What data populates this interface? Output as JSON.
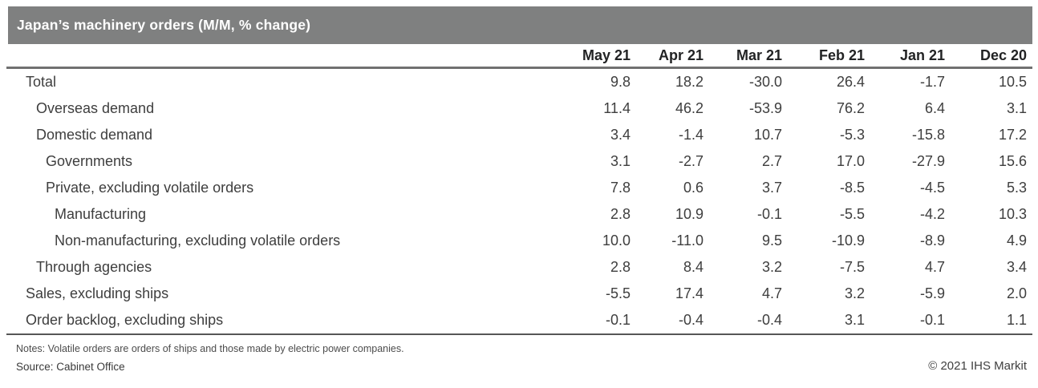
{
  "title_bar": {
    "title": "Japan’s machinery orders (M/M, % change)"
  },
  "chart_data": {
    "type": "table",
    "title": "Japan’s machinery orders (M/M, % change)",
    "unit": "M/M, % change",
    "columns": [
      "May 21",
      "Apr 21",
      "Mar 21",
      "Feb 21",
      "Jan 21",
      "Dec 20"
    ],
    "rows": [
      {
        "label": "Total",
        "indent": 0,
        "values": [
          "9.8",
          "18.2",
          "-30.0",
          "26.4",
          "-1.7",
          "10.5"
        ]
      },
      {
        "label": "Overseas demand",
        "indent": 1,
        "values": [
          "11.4",
          "46.2",
          "-53.9",
          "76.2",
          "6.4",
          "3.1"
        ]
      },
      {
        "label": "Domestic demand",
        "indent": 1,
        "values": [
          "3.4",
          "-1.4",
          "10.7",
          "-5.3",
          "-15.8",
          "17.2"
        ]
      },
      {
        "label": "Governments",
        "indent": 2,
        "values": [
          "3.1",
          "-2.7",
          "2.7",
          "17.0",
          "-27.9",
          "15.6"
        ]
      },
      {
        "label": "Private, excluding volatile orders",
        "indent": 2,
        "values": [
          "7.8",
          "0.6",
          "3.7",
          "-8.5",
          "-4.5",
          "5.3"
        ]
      },
      {
        "label": "Manufacturing",
        "indent": 3,
        "values": [
          "2.8",
          "10.9",
          "-0.1",
          "-5.5",
          "-4.2",
          "10.3"
        ]
      },
      {
        "label": "Non-manufacturing, excluding volatile orders",
        "indent": 3,
        "values": [
          "10.0",
          "-11.0",
          "9.5",
          "-10.9",
          "-8.9",
          "4.9"
        ]
      },
      {
        "label": "Through agencies",
        "indent": 1,
        "values": [
          "2.8",
          "8.4",
          "3.2",
          "-7.5",
          "4.7",
          "3.4"
        ]
      },
      {
        "label": "Sales, excluding ships",
        "indent": 0,
        "values": [
          "-5.5",
          "17.4",
          "4.7",
          "3.2",
          "-5.9",
          "2.0"
        ]
      },
      {
        "label": "Order backlog, excluding ships",
        "indent": 0,
        "values": [
          "-0.1",
          "-0.4",
          "-0.4",
          "3.1",
          "-0.1",
          "1.1"
        ]
      }
    ]
  },
  "footer": {
    "notes": "Notes: Volatile orders are orders of ships and those made by electric power companies.",
    "source": "Source: Cabinet Office",
    "copyright": "© 2021 IHS Markit"
  },
  "colors": {
    "title_bar_bg": "#7f8080",
    "title_text": "#ffffff",
    "header_text": "#222324",
    "body_text": "#3e3e3e",
    "header_rule": "#717171",
    "bottom_rule": "#565656"
  }
}
